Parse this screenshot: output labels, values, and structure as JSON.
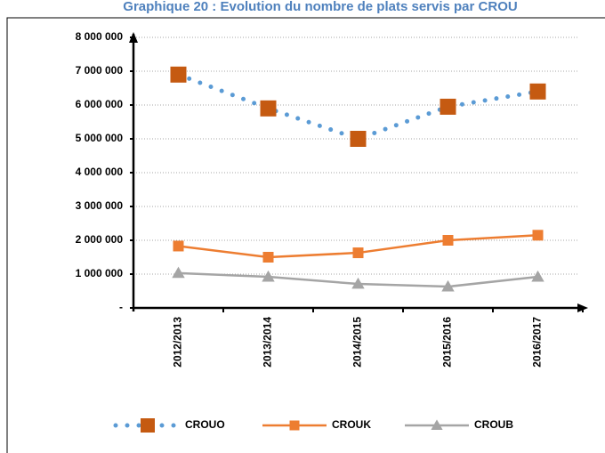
{
  "chart_data": {
    "type": "line",
    "title": "Graphique 20 : Evolution du nombre de plats servis par CROU",
    "categories": [
      "2012/2013",
      "2013/2014",
      "2014/2015",
      "2015/2016",
      "2016/2017"
    ],
    "series": [
      {
        "name": "CROUO",
        "color": "#5b9bd5",
        "marker_color": "#c55a11",
        "line_style": "dotted",
        "marker": "square",
        "values": [
          6900000,
          5900000,
          5000000,
          5950000,
          6400000
        ]
      },
      {
        "name": "CROUK",
        "color": "#ed7d31",
        "marker_color": "#ed7d31",
        "line_style": "solid",
        "marker": "square",
        "values": [
          1830000,
          1500000,
          1630000,
          2000000,
          2150000
        ]
      },
      {
        "name": "CROUB",
        "color": "#a5a5a5",
        "marker_color": "#a5a5a5",
        "line_style": "solid",
        "marker": "triangle",
        "values": [
          1030000,
          920000,
          710000,
          630000,
          920000
        ]
      }
    ],
    "ylim": [
      0,
      8000000
    ],
    "yticks": [
      {
        "value": 0,
        "label": "-"
      },
      {
        "value": 1000000,
        "label": "1 000 000"
      },
      {
        "value": 2000000,
        "label": "2 000 000"
      },
      {
        "value": 3000000,
        "label": "3 000 000"
      },
      {
        "value": 4000000,
        "label": "4 000 000"
      },
      {
        "value": 5000000,
        "label": "5 000 000"
      },
      {
        "value": 6000000,
        "label": "6 000 000"
      },
      {
        "value": 7000000,
        "label": "7 000 000"
      },
      {
        "value": 8000000,
        "label": "8 000 000"
      }
    ],
    "grid": true,
    "legend": "bottom"
  }
}
